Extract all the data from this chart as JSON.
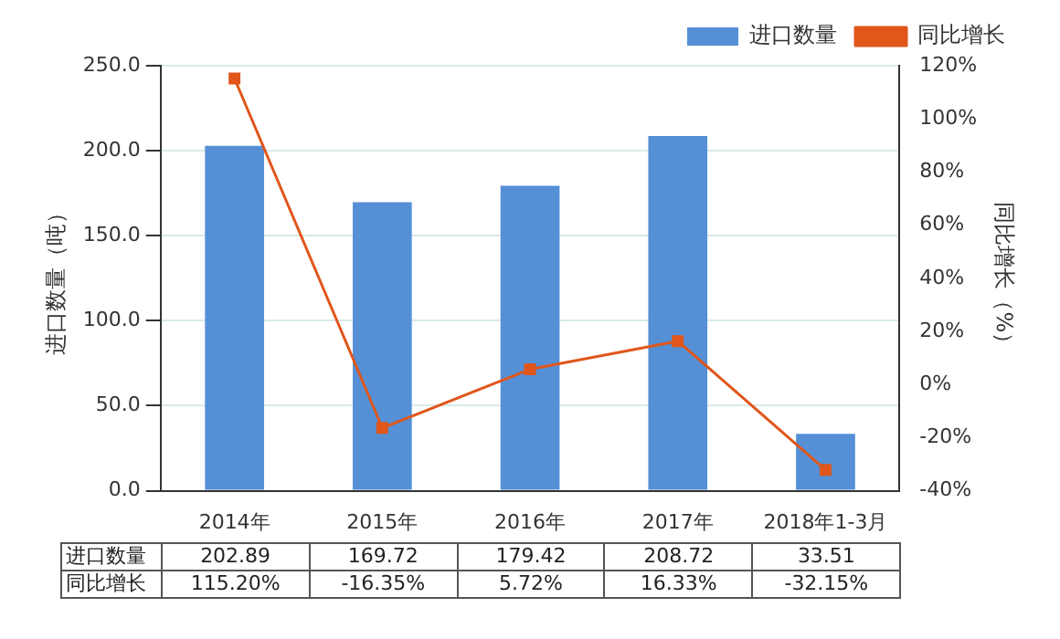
{
  "chart_data": {
    "type": "bar",
    "categories": [
      "2014年",
      "2015年",
      "2016年",
      "2017年",
      "2018年1-3月"
    ],
    "series": [
      {
        "name": "进口数量",
        "color": "#5590d6",
        "values": [
          202.89,
          169.72,
          179.42,
          208.72,
          33.51
        ],
        "value_labels": [
          "202.89",
          "169.72",
          "179.42",
          "208.72",
          "33.51"
        ]
      },
      {
        "name": "同比增长",
        "type": "line",
        "axis": "y2",
        "color": "#e0561b",
        "values": [
          115.2,
          -16.35,
          5.72,
          16.33,
          -32.15
        ],
        "value_labels": [
          "115.20%",
          "-16.35%",
          "5.72%",
          "16.33%",
          "-32.15%"
        ]
      }
    ],
    "ylabel": "进口数量（吨）",
    "y2label": "同比增长（%）",
    "ylim": [
      0,
      250
    ],
    "yticks": [
      {
        "value": 0,
        "label": "0.0"
      },
      {
        "value": 50,
        "label": "50.0"
      },
      {
        "value": 100,
        "label": "100.0"
      },
      {
        "value": 150,
        "label": "150.0"
      },
      {
        "value": 200,
        "label": "200.0"
      },
      {
        "value": 250,
        "label": "250.0"
      }
    ],
    "y2lim": [
      -40,
      120
    ],
    "y2ticks": [
      {
        "value": -40,
        "label": "-40%"
      },
      {
        "value": -20,
        "label": "-20%"
      },
      {
        "value": 0,
        "label": "0%"
      },
      {
        "value": 20,
        "label": "20%"
      },
      {
        "value": 40,
        "label": "40%"
      },
      {
        "value": 60,
        "label": "60%"
      },
      {
        "value": 80,
        "label": "80%"
      },
      {
        "value": 100,
        "label": "100%"
      },
      {
        "value": 120,
        "label": "120%"
      }
    ],
    "grid": "y",
    "legend": "top right",
    "marker": "square",
    "data_labels": true
  }
}
